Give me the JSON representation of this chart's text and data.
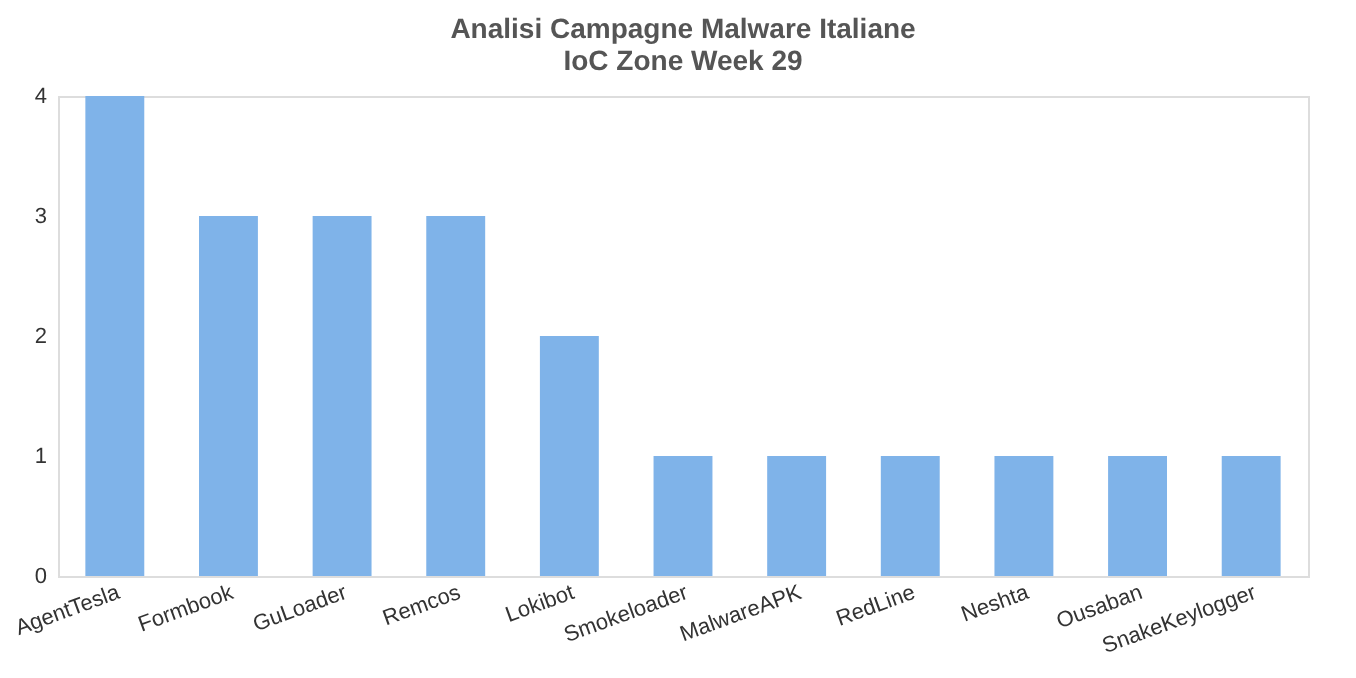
{
  "chart_data": {
    "type": "bar",
    "title": "Analisi Campagne Malware Italiane",
    "subtitle": "IoC Zone Week 29",
    "categories": [
      "AgentTesla",
      "Formbook",
      "GuLoader",
      "Remcos",
      "Lokibot",
      "Smokeloader",
      "MalwareAPK",
      "RedLine",
      "Neshta",
      "Ousaban",
      "SnakeKeylogger"
    ],
    "values": [
      4,
      3,
      3,
      3,
      2,
      1,
      1,
      1,
      1,
      1,
      1
    ],
    "color": "#7fb3e9",
    "ylim": [
      0,
      4
    ],
    "yticks": [
      0,
      1,
      2,
      3,
      4
    ],
    "grid": false
  }
}
